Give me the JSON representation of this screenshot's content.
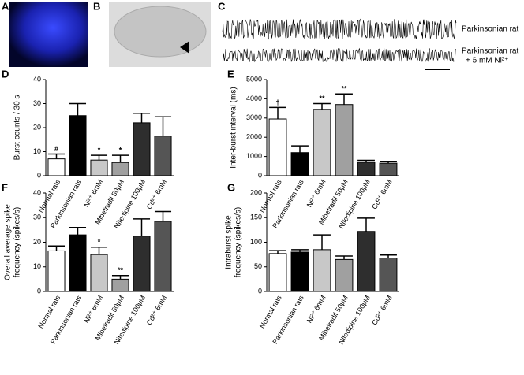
{
  "figure": {
    "labels": [
      "A",
      "B",
      "C"
    ],
    "trace_labels": [
      [
        "Parkinsonian rat"
      ],
      [
        "Parkinsonian rat",
        "+ 6 mM Ni²⁺"
      ]
    ]
  },
  "chart_data": [
    {
      "type": "bar",
      "panel": "D",
      "y_label": [
        "Burst counts / 30 s"
      ],
      "categories": [
        "Normal rats",
        "Parkinsonian rats",
        "Ni²⁺ 6mM",
        "Mibefradil 50μM",
        "Nifedipine 100μM",
        "Cd²⁺ 6mM"
      ],
      "values": [
        7,
        25,
        6.5,
        5.5,
        22,
        16.5
      ],
      "errors": [
        2,
        5,
        2,
        3,
        4,
        8
      ],
      "annotations": [
        "#",
        null,
        "*",
        "*",
        null,
        null
      ],
      "colors": [
        "#ffffff",
        "#000000",
        "#c8c8c8",
        "#a0a0a0",
        "#2e2e2e",
        "#555555"
      ],
      "ylim": [
        0,
        40
      ],
      "yticks": [
        0,
        10,
        20,
        30,
        40
      ]
    },
    {
      "type": "bar",
      "panel": "E",
      "y_label": [
        "Inter-burst interval (ms)"
      ],
      "categories": [
        "Normal rats",
        "Parkinsonian rats",
        "Ni²⁺ 6mM",
        "Mibefradil 50μM",
        "Nifedipine 100μM",
        "Cd²⁺ 6mM"
      ],
      "values": [
        2950,
        1200,
        3450,
        3700,
        700,
        650
      ],
      "errors": [
        600,
        350,
        300,
        550,
        100,
        100
      ],
      "annotations": [
        "†",
        null,
        "**",
        "**",
        null,
        null
      ],
      "colors": [
        "#ffffff",
        "#000000",
        "#c8c8c8",
        "#a0a0a0",
        "#2e2e2e",
        "#555555"
      ],
      "ylim": [
        0,
        5000
      ],
      "yticks": [
        0,
        1000,
        2000,
        3000,
        4000,
        5000
      ]
    },
    {
      "type": "bar",
      "panel": "F",
      "y_label": [
        "Overall average spike",
        "frequency (spikes/s)"
      ],
      "categories": [
        "Normal rats",
        "Parkinsonian rats",
        "Ni²⁺ 6mM",
        "Mibefradil 50μM",
        "Nifedipine 100μM",
        "Cd²⁺ 6mM"
      ],
      "values": [
        16.5,
        23,
        15,
        5,
        22.5,
        28.5
      ],
      "errors": [
        2,
        3,
        3,
        1.5,
        7,
        4
      ],
      "annotations": [
        null,
        null,
        "*",
        "**",
        null,
        null
      ],
      "colors": [
        "#ffffff",
        "#000000",
        "#c8c8c8",
        "#a0a0a0",
        "#2e2e2e",
        "#555555"
      ],
      "ylim": [
        0,
        40
      ],
      "yticks": [
        0,
        10,
        20,
        30,
        40
      ]
    },
    {
      "type": "bar",
      "panel": "G",
      "y_label": [
        "Intraburst spike",
        "frequency (spikes/s)"
      ],
      "categories": [
        "Normal rats",
        "Parkinsonian rats",
        "Ni²⁺ 6mM",
        "Mibefradil 50μM",
        "Nifedipine 100μM",
        "Cd²⁺ 6mM"
      ],
      "values": [
        77,
        80,
        85,
        65,
        122,
        68
      ],
      "errors": [
        6,
        5,
        30,
        7,
        27,
        6
      ],
      "annotations": [
        null,
        null,
        null,
        null,
        null,
        null
      ],
      "colors": [
        "#ffffff",
        "#000000",
        "#c8c8c8",
        "#a0a0a0",
        "#2e2e2e",
        "#555555"
      ],
      "ylim": [
        0,
        200
      ],
      "yticks": [
        0,
        50,
        100,
        150,
        200
      ]
    }
  ]
}
